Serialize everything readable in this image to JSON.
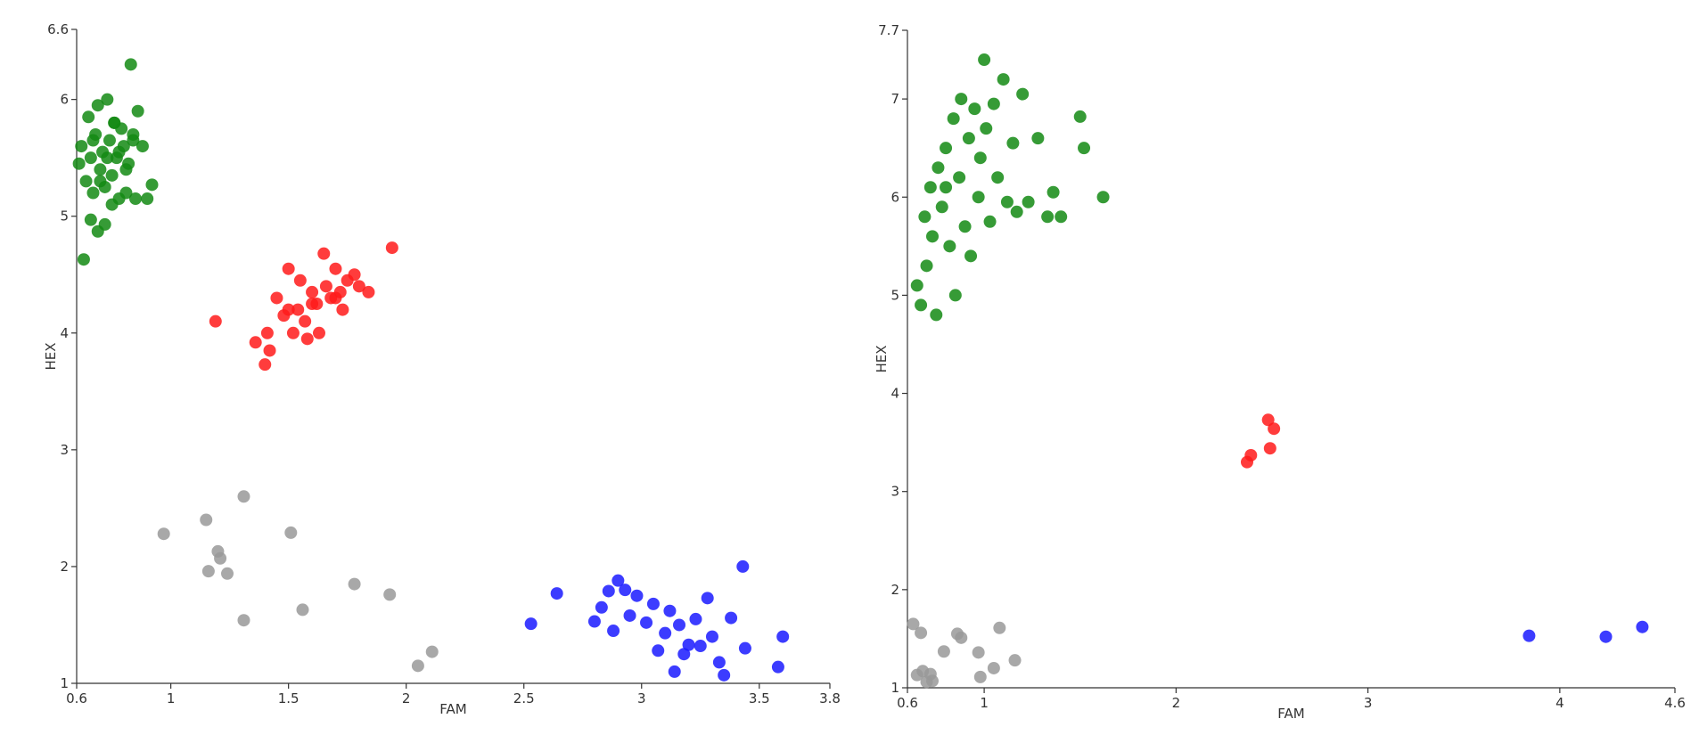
{
  "chart_data": [
    {
      "type": "scatter",
      "xlabel": "FAM",
      "ylabel": "HEX",
      "xlim": [
        0.6,
        3.8
      ],
      "ylim": [
        1,
        6.6
      ],
      "xticks": [
        0.6,
        1,
        1.5,
        2,
        2.5,
        3,
        3.5,
        3.8
      ],
      "yticks": [
        1,
        2,
        3,
        4,
        5,
        6,
        6.6
      ],
      "series": [
        {
          "color": "#138a13",
          "x": [
            0.61,
            0.62,
            0.64,
            0.65,
            0.66,
            0.67,
            0.68,
            0.69,
            0.7,
            0.71,
            0.72,
            0.73,
            0.74,
            0.75,
            0.76,
            0.77,
            0.78,
            0.79,
            0.8,
            0.81,
            0.82,
            0.83,
            0.84,
            0.85,
            0.86,
            0.88,
            0.9,
            0.92,
            0.63,
            0.66,
            0.69,
            0.72,
            0.75,
            0.78,
            0.81,
            0.84,
            0.67,
            0.7,
            0.73,
            0.76
          ],
          "values": [
            5.45,
            5.6,
            5.3,
            5.85,
            5.5,
            5.2,
            5.7,
            5.95,
            5.4,
            5.55,
            5.25,
            6.0,
            5.65,
            5.35,
            5.8,
            5.5,
            5.15,
            5.75,
            5.6,
            5.2,
            5.45,
            6.3,
            5.65,
            5.15,
            5.9,
            5.6,
            5.15,
            5.27,
            4.63,
            4.97,
            4.87,
            4.93,
            5.1,
            5.55,
            5.4,
            5.7,
            5.65,
            5.3,
            5.5,
            5.8
          ]
        },
        {
          "color": "#ff1a1a",
          "x": [
            1.19,
            1.36,
            1.4,
            1.41,
            1.42,
            1.45,
            1.48,
            1.5,
            1.52,
            1.54,
            1.55,
            1.57,
            1.58,
            1.6,
            1.62,
            1.63,
            1.65,
            1.66,
            1.68,
            1.7,
            1.72,
            1.73,
            1.75,
            1.78,
            1.8,
            1.84,
            1.94,
            1.5,
            1.6,
            1.7
          ],
          "values": [
            4.1,
            3.92,
            3.73,
            4.0,
            3.85,
            4.3,
            4.15,
            4.55,
            4.0,
            4.2,
            4.45,
            4.1,
            3.95,
            4.35,
            4.25,
            4.0,
            4.68,
            4.4,
            4.3,
            4.55,
            4.35,
            4.2,
            4.45,
            4.5,
            4.4,
            4.35,
            4.73,
            4.2,
            4.25,
            4.3
          ]
        },
        {
          "color": "#999999",
          "x": [
            0.97,
            1.15,
            1.16,
            1.2,
            1.21,
            1.24,
            1.31,
            1.31,
            1.51,
            1.56,
            1.78,
            1.93,
            2.05,
            2.11
          ],
          "values": [
            2.28,
            2.4,
            1.96,
            2.13,
            2.07,
            1.94,
            2.6,
            1.54,
            2.29,
            1.63,
            1.85,
            1.76,
            1.15,
            1.27
          ]
        },
        {
          "color": "#1a1aff",
          "x": [
            2.53,
            2.64,
            2.8,
            2.83,
            2.86,
            2.88,
            2.9,
            2.93,
            2.95,
            2.98,
            3.02,
            3.05,
            3.07,
            3.1,
            3.12,
            3.14,
            3.16,
            3.18,
            3.2,
            3.23,
            3.25,
            3.28,
            3.3,
            3.33,
            3.35,
            3.38,
            3.43,
            3.44,
            3.58,
            3.6
          ],
          "values": [
            1.51,
            1.77,
            1.53,
            1.65,
            1.79,
            1.45,
            1.88,
            1.8,
            1.58,
            1.75,
            1.52,
            1.68,
            1.28,
            1.43,
            1.62,
            1.1,
            1.5,
            1.25,
            1.33,
            1.55,
            1.32,
            1.73,
            1.4,
            1.18,
            1.07,
            1.56,
            2.0,
            1.3,
            1.14,
            1.4
          ]
        }
      ]
    },
    {
      "type": "scatter",
      "xlabel": "FAM",
      "ylabel": "HEX",
      "xlim": [
        0.6,
        4.6
      ],
      "ylim": [
        1,
        7.7
      ],
      "xticks": [
        0.6,
        1,
        2,
        3,
        4,
        4.6
      ],
      "yticks": [
        1,
        2,
        3,
        4,
        5,
        6,
        7,
        7.7
      ],
      "series": [
        {
          "color": "#138a13",
          "x": [
            0.65,
            0.67,
            0.69,
            0.7,
            0.72,
            0.73,
            0.75,
            0.76,
            0.78,
            0.8,
            0.82,
            0.84,
            0.85,
            0.87,
            0.88,
            0.9,
            0.92,
            0.93,
            0.95,
            0.97,
            0.98,
            1.0,
            1.01,
            1.03,
            1.05,
            1.07,
            1.1,
            1.12,
            1.15,
            1.17,
            1.2,
            1.23,
            1.28,
            1.33,
            1.36,
            1.4,
            1.5,
            1.52,
            1.62,
            0.8
          ],
          "values": [
            5.1,
            4.9,
            5.8,
            5.3,
            6.1,
            5.6,
            4.8,
            6.3,
            5.9,
            6.5,
            5.5,
            6.8,
            5.0,
            6.2,
            7.0,
            5.7,
            6.6,
            5.4,
            6.9,
            6.0,
            6.4,
            7.4,
            6.7,
            5.75,
            6.95,
            6.2,
            7.2,
            5.95,
            6.55,
            5.85,
            7.05,
            5.95,
            6.6,
            5.8,
            6.05,
            5.8,
            6.82,
            6.5,
            6.0,
            6.1
          ]
        },
        {
          "color": "#ff1a1a",
          "x": [
            2.37,
            2.39,
            2.48,
            2.49,
            2.51
          ],
          "values": [
            3.3,
            3.37,
            3.73,
            3.44,
            3.64
          ]
        },
        {
          "color": "#999999",
          "x": [
            0.63,
            0.65,
            0.67,
            0.68,
            0.7,
            0.72,
            0.73,
            0.79,
            0.86,
            0.88,
            0.97,
            0.98,
            1.05,
            1.08,
            1.16
          ],
          "values": [
            1.65,
            1.13,
            1.56,
            1.17,
            1.06,
            1.14,
            1.07,
            1.37,
            1.55,
            1.51,
            1.36,
            1.11,
            1.2,
            1.61,
            1.28
          ]
        },
        {
          "color": "#1a1aff",
          "x": [
            3.84,
            4.24,
            4.43
          ],
          "values": [
            1.53,
            1.52,
            1.62
          ]
        }
      ]
    }
  ]
}
